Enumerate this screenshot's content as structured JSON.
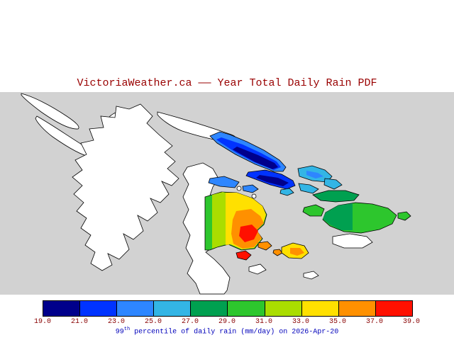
{
  "title": "VictoriaWeather.ca —— Year Total Daily Rain PDF",
  "colors": {
    "map_bg": "#d2d2d2",
    "land": "#ffffff",
    "coast": "#000000",
    "title": "#990000",
    "ticks": "#880000",
    "caption": "#0000bb"
  },
  "palette": {
    "navy": "#00008b",
    "blue": "#0033ff",
    "dodger": "#2e86ff",
    "cyan": "#33b5e5",
    "green_dark": "#00a050",
    "green": "#2dc62d",
    "chartreuse": "#aadd00",
    "yellow": "#ffe000",
    "orange": "#ff9000",
    "red": "#ff1000"
  },
  "colorbar": {
    "ticks": [
      "19.0",
      "21.0",
      "23.0",
      "25.0",
      "27.0",
      "29.0",
      "31.0",
      "33.0",
      "35.0",
      "37.0",
      "39.0"
    ],
    "segments": [
      "#00008b",
      "#0033ff",
      "#2e86ff",
      "#33b5e5",
      "#00a050",
      "#2dc62d",
      "#aadd00",
      "#ffe000",
      "#ff9000",
      "#ff1000"
    ]
  },
  "caption": {
    "prefix": "99",
    "sup": "th",
    "rest": " percentile of daily rain (mm/day) on 2026-Apr-20"
  },
  "chart_data": {
    "type": "heatmap",
    "title": "VictoriaWeather.ca —— Year Total Daily Rain PDF",
    "variable": "99th percentile of daily rain",
    "units": "mm/day",
    "date": "2026-Apr-20",
    "scale_min": 19,
    "scale_max": 39,
    "scale_step": 2,
    "scale_ticks": [
      19,
      21,
      23,
      25,
      27,
      29,
      31,
      33,
      35,
      37,
      39
    ],
    "scale_colors": [
      "#00008b",
      "#0033ff",
      "#2e86ff",
      "#33b5e5",
      "#00a050",
      "#2dc62d",
      "#aadd00",
      "#ffe000",
      "#ff9000",
      "#ff1000"
    ],
    "regions": [
      {
        "location": "elongated north-central island strip",
        "approx_value_range": [
          19,
          25
        ]
      },
      {
        "location": "islands just east of blue strip",
        "approx_value_range": [
          25,
          27
        ]
      },
      {
        "location": "eastern island group",
        "approx_value_range": [
          27,
          31
        ]
      },
      {
        "location": "central peninsula data patch",
        "approx_value_range": [
          29,
          39
        ]
      },
      {
        "location": "small southern islets",
        "approx_value_range": [
          33,
          39
        ]
      }
    ]
  }
}
